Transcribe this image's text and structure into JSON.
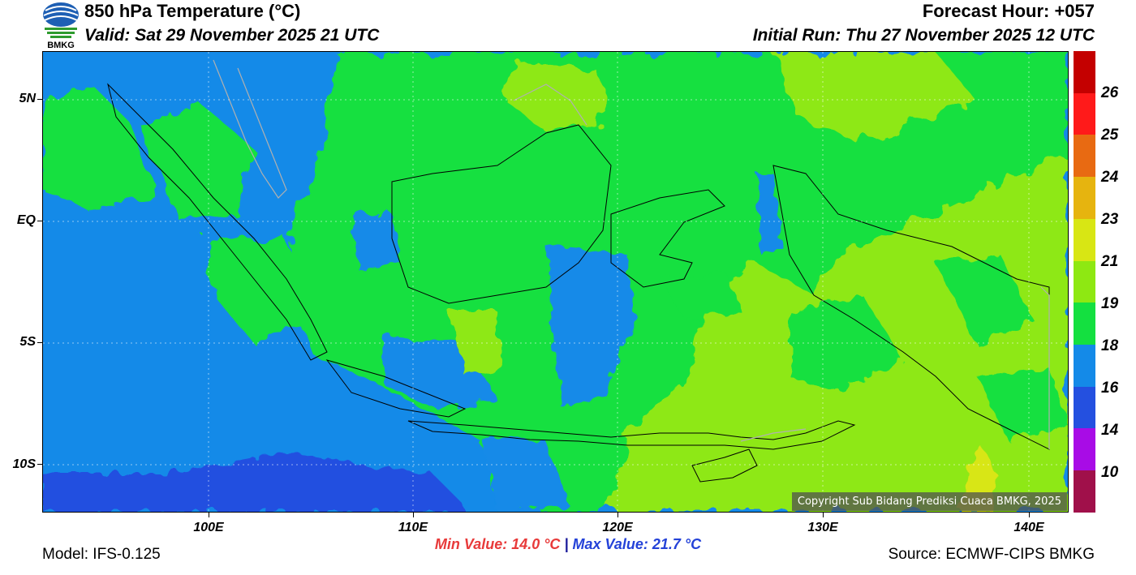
{
  "header": {
    "logo_text": "BMKG",
    "title": "850 hPa Temperature (°C)",
    "valid": "Valid: Sat 29 November 2025 21 UTC",
    "forecast_hour": "Forecast Hour: +057",
    "initial_run": "Initial Run: Thu 27 November 2025 12 UTC"
  },
  "map": {
    "lat_labels": [
      "5N",
      "EQ",
      "5S",
      "10S"
    ],
    "lon_labels": [
      "100E",
      "110E",
      "120E",
      "130E",
      "140E"
    ],
    "copyright": "Copyright Sub Bidang Prediksi Cuaca BMKG, 2025"
  },
  "colorbar": {
    "labels": [
      "26",
      "25",
      "24",
      "23",
      "21",
      "19",
      "18",
      "16",
      "14",
      "10"
    ],
    "colors": [
      "#c40000",
      "#ff1a1a",
      "#e86a12",
      "#e6b40f",
      "#d8e614",
      "#8ee812",
      "#14e040",
      "#148ae8",
      "#2450e0",
      "#a80ce6",
      "#a0104a"
    ]
  },
  "stats": {
    "min_label": "Min Value: 14.0 °C",
    "separator": "|",
    "max_label": "Max Value: 21.7 °C"
  },
  "footer": {
    "model": "Model: IFS-0.125",
    "source": "Source: ECMWF-CIPS BMKG"
  }
}
